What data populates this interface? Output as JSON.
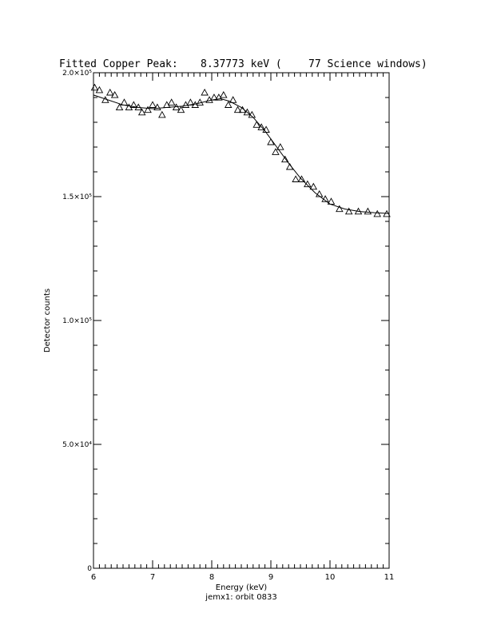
{
  "chart_data": {
    "type": "scatter",
    "title": {
      "label": "Fitted Copper Peak:",
      "value": "8.37773 keV (",
      "windows": "77 Science windows)"
    },
    "xlabel": "Energy (keV)",
    "ylabel": "Detector counts",
    "caption": "jemx1: orbit 0833",
    "xlim": [
      6,
      11
    ],
    "ylim": [
      0,
      200000
    ],
    "x_ticks": [
      {
        "v": 6,
        "label": "6"
      },
      {
        "v": 7,
        "label": "7"
      },
      {
        "v": 8,
        "label": "8"
      },
      {
        "v": 9,
        "label": "9"
      },
      {
        "v": 10,
        "label": "10"
      },
      {
        "v": 11,
        "label": "11"
      }
    ],
    "y_ticks": [
      {
        "v": 0,
        "label": "0"
      },
      {
        "v": 50000,
        "label": "5.0×10⁴"
      },
      {
        "v": 100000,
        "label": "1.0×10⁵"
      },
      {
        "v": 150000,
        "label": "1.5×10⁵"
      },
      {
        "v": 200000,
        "label": "2.0×10⁵"
      }
    ],
    "grid": false,
    "series": [
      {
        "kind": "points",
        "marker": "triangle",
        "x": [
          6.02,
          6.1,
          6.2,
          6.28,
          6.36,
          6.44,
          6.52,
          6.6,
          6.68,
          6.76,
          6.82,
          6.92,
          7.0,
          7.08,
          7.16,
          7.24,
          7.32,
          7.4,
          7.48,
          7.56,
          7.64,
          7.72,
          7.8,
          7.88,
          7.96,
          8.04,
          8.12,
          8.2,
          8.28,
          8.36,
          8.44,
          8.52,
          8.6,
          8.68,
          8.76,
          8.84,
          8.92,
          9.0,
          9.08,
          9.16,
          9.24,
          9.32,
          9.42,
          9.52,
          9.62,
          9.72,
          9.82,
          9.92,
          10.02,
          10.16,
          10.32,
          10.48,
          10.64,
          10.8,
          10.96
        ],
        "y": [
          194000,
          193000,
          189000,
          192000,
          191000,
          186000,
          188000,
          186000,
          187000,
          186000,
          184000,
          185000,
          187000,
          186000,
          183000,
          187000,
          188000,
          186000,
          185000,
          187000,
          188000,
          187000,
          188000,
          192000,
          189000,
          190000,
          190000,
          191000,
          187000,
          189000,
          185000,
          185000,
          184000,
          183000,
          179000,
          178000,
          177000,
          172000,
          168000,
          170000,
          165000,
          162000,
          157000,
          157000,
          155000,
          154000,
          151000,
          149000,
          148000,
          145000,
          144000,
          144000,
          144000,
          143000,
          143000
        ]
      },
      {
        "kind": "fit",
        "x": [
          6.0,
          6.25,
          6.5,
          6.75,
          7.0,
          7.25,
          7.5,
          7.75,
          8.0,
          8.15,
          8.3,
          8.5,
          8.7,
          8.9,
          9.1,
          9.3,
          9.5,
          9.75,
          10.0,
          10.25,
          10.5,
          10.75,
          11.0
        ],
        "y": [
          191000,
          189000,
          187000,
          186000,
          185500,
          186000,
          186500,
          187500,
          189000,
          189500,
          188500,
          186000,
          182000,
          176500,
          170000,
          163500,
          157500,
          151500,
          147000,
          145000,
          144000,
          143500,
          143200
        ]
      }
    ]
  }
}
